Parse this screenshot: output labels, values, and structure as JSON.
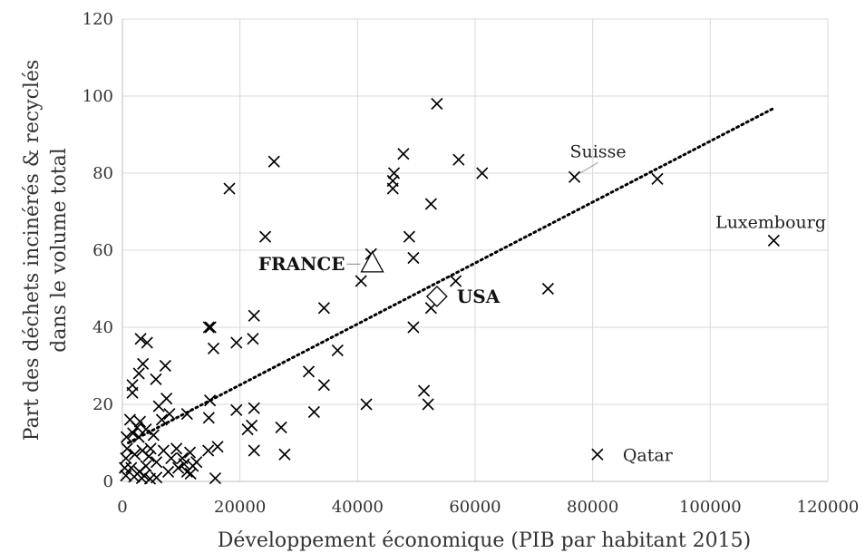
{
  "chart_data": {
    "type": "scatter",
    "xlabel": "Développement économique (PIB par habitant 2015)",
    "ylabel_line1": "Part des déchets incinérés & recyclés",
    "ylabel_line2": "dans le volume total",
    "xlim": [
      0,
      120000
    ],
    "ylim": [
      0,
      120
    ],
    "x_ticks": [
      0,
      20000,
      40000,
      60000,
      80000,
      100000,
      120000
    ],
    "y_ticks": [
      0,
      20,
      40,
      60,
      80,
      100,
      120
    ],
    "x_tick_labels": [
      "0",
      "20000",
      "40000",
      "60000",
      "80000",
      "100000",
      "120000"
    ],
    "y_tick_labels": [
      "0",
      "20",
      "40",
      "60",
      "80",
      "100",
      "120"
    ],
    "grid": true,
    "trendline": {
      "style": "dotted",
      "x": [
        1000,
        111000
      ],
      "y": [
        10,
        97
      ]
    },
    "points": [
      [
        53500,
        98
      ],
      [
        25800,
        83
      ],
      [
        47800,
        85
      ],
      [
        57200,
        83.5
      ],
      [
        46200,
        80
      ],
      [
        46000,
        78
      ],
      [
        46000,
        76
      ],
      [
        61200,
        80
      ],
      [
        91000,
        78.5
      ],
      [
        76900,
        79
      ],
      [
        18200,
        76
      ],
      [
        24300,
        63.5
      ],
      [
        52500,
        72
      ],
      [
        48800,
        63.5
      ],
      [
        42300,
        59
      ],
      [
        49500,
        58
      ],
      [
        40600,
        52
      ],
      [
        56700,
        52
      ],
      [
        72400,
        50
      ],
      [
        52500,
        45
      ],
      [
        22400,
        43
      ],
      [
        34300,
        45
      ],
      [
        110800,
        62.5
      ],
      [
        14700,
        40
      ],
      [
        15000,
        40
      ],
      [
        49500,
        40
      ],
      [
        19400,
        36
      ],
      [
        22200,
        37
      ],
      [
        15500,
        34.5
      ],
      [
        36600,
        34
      ],
      [
        3100,
        37
      ],
      [
        4200,
        36
      ],
      [
        3500,
        30.5
      ],
      [
        7300,
        30
      ],
      [
        2800,
        28
      ],
      [
        5700,
        26.5
      ],
      [
        1700,
        25
      ],
      [
        1700,
        23
      ],
      [
        31700,
        28.5
      ],
      [
        34300,
        25
      ],
      [
        14900,
        21
      ],
      [
        7500,
        21.5
      ],
      [
        6200,
        19.5
      ],
      [
        22400,
        19
      ],
      [
        19400,
        18.5
      ],
      [
        8000,
        17.5
      ],
      [
        11000,
        17.5
      ],
      [
        32600,
        18
      ],
      [
        41500,
        20
      ],
      [
        51300,
        23.5
      ],
      [
        52000,
        20
      ],
      [
        14700,
        16.5
      ],
      [
        6700,
        16
      ],
      [
        1300,
        16
      ],
      [
        3000,
        15.5
      ],
      [
        2500,
        14
      ],
      [
        4000,
        13.5
      ],
      [
        1800,
        12.5
      ],
      [
        22000,
        14.5
      ],
      [
        21300,
        13.5
      ],
      [
        27000,
        14
      ],
      [
        5300,
        12
      ],
      [
        700,
        11.5
      ],
      [
        2800,
        11.5
      ],
      [
        16200,
        9
      ],
      [
        9200,
        8.5
      ],
      [
        4800,
        8.5
      ],
      [
        800,
        8.5
      ],
      [
        3400,
        8
      ],
      [
        7000,
        8
      ],
      [
        11500,
        7.5
      ],
      [
        14600,
        8
      ],
      [
        22400,
        8
      ],
      [
        27600,
        7
      ],
      [
        80800,
        7
      ],
      [
        600,
        6
      ],
      [
        2100,
        7
      ],
      [
        4500,
        6.5
      ],
      [
        5800,
        5
      ],
      [
        8300,
        6
      ],
      [
        10200,
        6
      ],
      [
        10500,
        4.5
      ],
      [
        12000,
        4
      ],
      [
        9500,
        3.5
      ],
      [
        1500,
        3.5
      ],
      [
        400,
        3.5
      ],
      [
        2900,
        2.5
      ],
      [
        7800,
        2.5
      ],
      [
        11000,
        2.5
      ],
      [
        600,
        1.5
      ],
      [
        3700,
        1.5
      ],
      [
        5800,
        1
      ],
      [
        3300,
        0.8
      ],
      [
        4700,
        0.7
      ],
      [
        15800,
        0.8
      ],
      [
        11600,
        2
      ],
      [
        2000,
        1.2
      ],
      [
        12600,
        5
      ],
      [
        4000,
        4
      ]
    ],
    "markers": [
      {
        "label": "FRANCE",
        "shape": "triangle",
        "x": 42500,
        "y": 56.5
      },
      {
        "label": "USA",
        "shape": "diamond",
        "x": 53500,
        "y": 48
      }
    ],
    "annotations": [
      {
        "text": "Suisse",
        "x": 76900,
        "y": 79
      },
      {
        "text": "Luxembourg",
        "x": 110800,
        "y": 62.5
      },
      {
        "text": "Qatar",
        "x": 80800,
        "y": 7
      }
    ]
  }
}
